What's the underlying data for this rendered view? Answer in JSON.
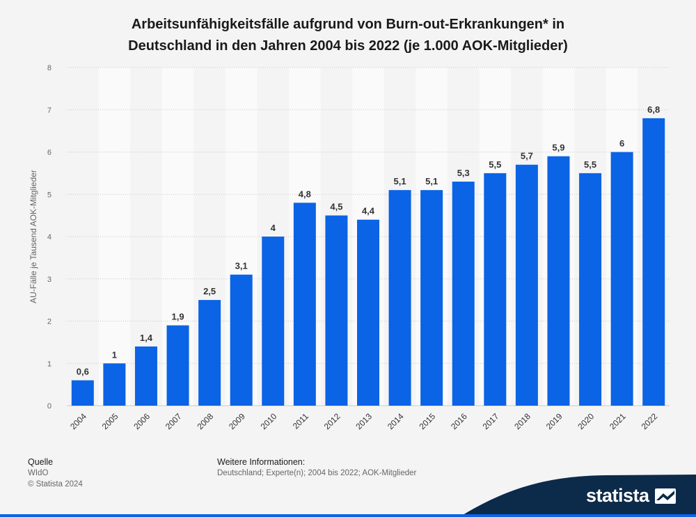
{
  "chart_data": {
    "type": "bar",
    "title_lines": [
      "Arbeitsunfähigkeitsfälle aufgrund von Burn-out-Erkrankungen* in",
      "Deutschland in den Jahren 2004 bis 2022 (je 1.000 AOK-Mitglieder)"
    ],
    "ylabel": "AU-Fälle je Tausend AOK-Mitglieder",
    "xlabel": "",
    "categories": [
      "2004",
      "2005",
      "2006",
      "2007",
      "2008",
      "2009",
      "2010",
      "2011",
      "2012",
      "2013",
      "2014",
      "2015",
      "2016",
      "2017",
      "2018",
      "2019",
      "2020",
      "2021",
      "2022"
    ],
    "values": [
      0.6,
      1,
      1.4,
      1.9,
      2.5,
      3.1,
      4,
      4.8,
      4.5,
      4.4,
      5.1,
      5.1,
      5.3,
      5.5,
      5.7,
      5.9,
      5.5,
      6,
      6.8
    ],
    "value_labels": [
      "0,6",
      "1",
      "1,4",
      "1,9",
      "2,5",
      "3,1",
      "4",
      "4,8",
      "4,5",
      "4,4",
      "5,1",
      "5,1",
      "5,3",
      "5,5",
      "5,7",
      "5,9",
      "5,5",
      "6",
      "6,8"
    ],
    "y_ticks": [
      "0",
      "1",
      "2",
      "3",
      "4",
      "5",
      "6",
      "7",
      "8"
    ],
    "ylim": [
      0,
      8
    ],
    "grid": true,
    "bar_color": "#0b63e6"
  },
  "footer": {
    "source_heading": "Quelle",
    "source_name": "WIdO",
    "copyright": "© Statista 2024",
    "info_heading": "Weitere Informationen:",
    "info_text": "Deutschland; Experte(n); 2004 bis 2022; AOK-Mitglieder"
  },
  "brand": {
    "name": "statista",
    "band_color": "#0c2a4a",
    "accent_color": "#0b63e6"
  }
}
